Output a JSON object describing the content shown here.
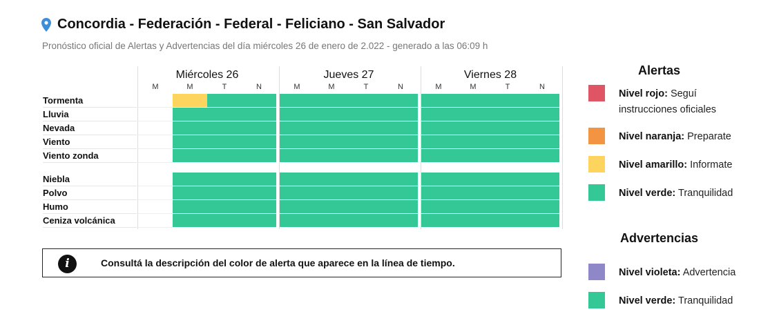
{
  "header": {
    "title": "Concordia - Federación - Federal - Feliciano - San Salvador",
    "subtitle": "Pronóstico oficial de Alertas y Advertencias del día miércoles 26 de enero de 2.022 - generado a las 06:09 h"
  },
  "colors": {
    "red": "#e05565",
    "orange": "#f39442",
    "yellow": "#fcd45e",
    "green": "#34c896",
    "violet": "#8e88c8"
  },
  "days": [
    {
      "name": "Miércoles 26",
      "periods": [
        "M",
        "M",
        "T",
        "N"
      ]
    },
    {
      "name": "Jueves 27",
      "periods": [
        "M",
        "M",
        "T",
        "N"
      ]
    },
    {
      "name": "Viernes 28",
      "periods": [
        "M",
        "M",
        "T",
        "N"
      ]
    }
  ],
  "rows": [
    {
      "label": "Tormenta",
      "cells": [
        "none",
        "yellow",
        "green",
        "green",
        "green",
        "green",
        "green",
        "green",
        "green",
        "green",
        "green",
        "green"
      ]
    },
    {
      "label": "Lluvia",
      "cells": [
        "none",
        "green",
        "green",
        "green",
        "green",
        "green",
        "green",
        "green",
        "green",
        "green",
        "green",
        "green"
      ]
    },
    {
      "label": "Nevada",
      "cells": [
        "none",
        "green",
        "green",
        "green",
        "green",
        "green",
        "green",
        "green",
        "green",
        "green",
        "green",
        "green"
      ]
    },
    {
      "label": "Viento",
      "cells": [
        "none",
        "green",
        "green",
        "green",
        "green",
        "green",
        "green",
        "green",
        "green",
        "green",
        "green",
        "green"
      ]
    },
    {
      "label": "Viento zonda",
      "cells": [
        "none",
        "green",
        "green",
        "green",
        "green",
        "green",
        "green",
        "green",
        "green",
        "green",
        "green",
        "green"
      ]
    },
    {
      "label": "Niebla",
      "cells": [
        "none",
        "green",
        "green",
        "green",
        "green",
        "green",
        "green",
        "green",
        "green",
        "green",
        "green",
        "green"
      ]
    },
    {
      "label": "Polvo",
      "cells": [
        "none",
        "green",
        "green",
        "green",
        "green",
        "green",
        "green",
        "green",
        "green",
        "green",
        "green",
        "green"
      ]
    },
    {
      "label": "Humo",
      "cells": [
        "none",
        "green",
        "green",
        "green",
        "green",
        "green",
        "green",
        "green",
        "green",
        "green",
        "green",
        "green"
      ]
    },
    {
      "label": "Ceniza volcánica",
      "cells": [
        "none",
        "green",
        "green",
        "green",
        "green",
        "green",
        "green",
        "green",
        "green",
        "green",
        "green",
        "green"
      ]
    }
  ],
  "info": {
    "icon": "info-icon",
    "glyph": "i",
    "text": "Consultá la descripción del color de alerta que aparece en la línea de tiempo."
  },
  "legend": {
    "alerts_title": "Alertas",
    "alerts": [
      {
        "color": "red",
        "level": "Nivel rojo:",
        "desc": "Seguí instrucciones oficiales"
      },
      {
        "color": "orange",
        "level": "Nivel naranja:",
        "desc": "Preparate"
      },
      {
        "color": "yellow",
        "level": "Nivel amarillo:",
        "desc": "Informate"
      },
      {
        "color": "green",
        "level": "Nivel verde:",
        "desc": "Tranquilidad"
      }
    ],
    "warnings_title": "Advertencias",
    "warnings": [
      {
        "color": "violet",
        "level": "Nivel violeta:",
        "desc": "Advertencia"
      },
      {
        "color": "green",
        "level": "Nivel verde:",
        "desc": "Tranquilidad"
      }
    ]
  }
}
